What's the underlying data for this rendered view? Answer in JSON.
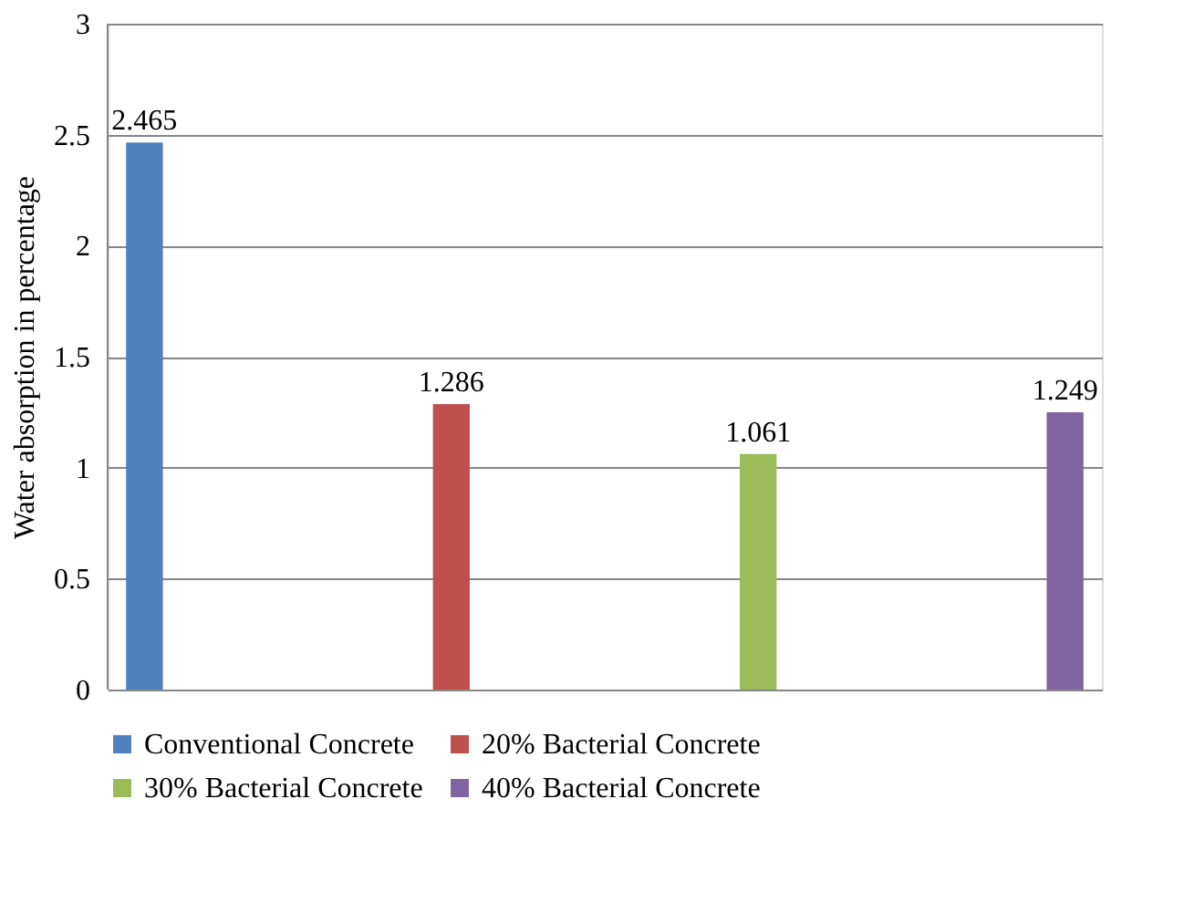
{
  "chart_data": {
    "type": "bar",
    "ylabel": "Water absorption in percentage",
    "categories": [
      null
    ],
    "series": [
      {
        "name": "Conventional Concrete",
        "color": "#4f81bd",
        "values": [
          2.465
        ]
      },
      {
        "name": "20% Bacterial Concrete",
        "color": "#c0504d",
        "values": [
          1.286
        ]
      },
      {
        "name": "30% Bacterial Concrete",
        "color": "#9bbb59",
        "values": [
          1.061
        ]
      },
      {
        "name": "40% Bacterial Concrete",
        "color": "#8064a2",
        "values": [
          1.249
        ]
      }
    ],
    "ylim": [
      0,
      3
    ],
    "yticks": [
      0,
      0.5,
      1,
      1.5,
      2,
      2.5,
      3
    ],
    "grid": "y",
    "legend": "bottom",
    "data_labels": true
  }
}
